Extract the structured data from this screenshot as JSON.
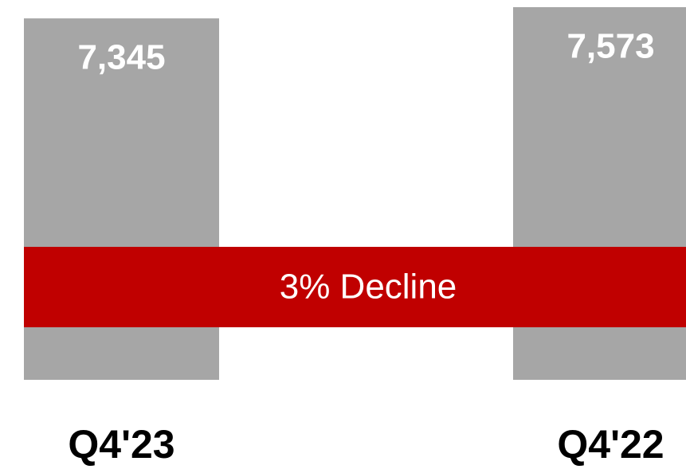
{
  "chart_data": {
    "type": "bar",
    "categories": [
      "Q4'23",
      "Q4'22"
    ],
    "values": [
      7345,
      7573
    ],
    "value_labels": [
      "7,345",
      "7,573"
    ],
    "color": "#a6a6a6",
    "annotation": "3% Decline",
    "annotation_color": "#c00000"
  }
}
